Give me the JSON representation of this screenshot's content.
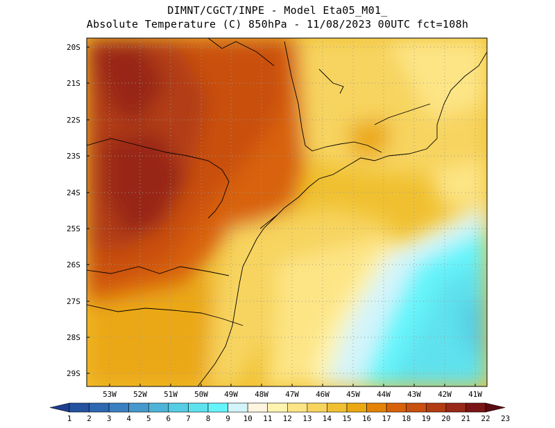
{
  "title": {
    "line1": "DIMNT/CGCT/INPE -  Model Eta05_M01_",
    "line2": "Absolute Temperature (C) 850hPa -  11/08/2023 00UTC fct=108h"
  },
  "lat_labels": [
    "20S",
    "21S",
    "22S",
    "23S",
    "24S",
    "25S",
    "26S",
    "27S",
    "28S",
    "29S"
  ],
  "lon_labels": [
    "53W",
    "52W",
    "51W",
    "50W",
    "49W",
    "48W",
    "47W",
    "46W",
    "45W",
    "44W",
    "43W",
    "42W",
    "41W"
  ],
  "colorbar": {
    "labels": [
      "1",
      "2",
      "3",
      "4",
      "5",
      "6",
      "7",
      "8",
      "9",
      "10",
      "11",
      "12",
      "13",
      "14",
      "15",
      "16",
      "17",
      "18",
      "19",
      "20",
      "21",
      "22",
      "23"
    ],
    "colors": [
      "#1f3d8c",
      "#2552a0",
      "#2e68b0",
      "#3a80c0",
      "#4599cc",
      "#4db4d8",
      "#55cde4",
      "#5ee2ee",
      "#66f4fb",
      "#d3f4fb",
      "#fdf5e0",
      "#fef4b0",
      "#fde586",
      "#f7d45e",
      "#f0c030",
      "#eba812",
      "#e48308",
      "#d8620a",
      "#c95010",
      "#b23c12",
      "#982818",
      "#7a1515",
      "#5a0a10"
    ]
  },
  "fields": {
    "legend_gradient": [
      "#5ee2ee",
      "#d3f4fb",
      "#fef4b0",
      "#f7d45e",
      "#f0c030",
      "#e48308",
      "#c95010",
      "#b23c12"
    ]
  }
}
